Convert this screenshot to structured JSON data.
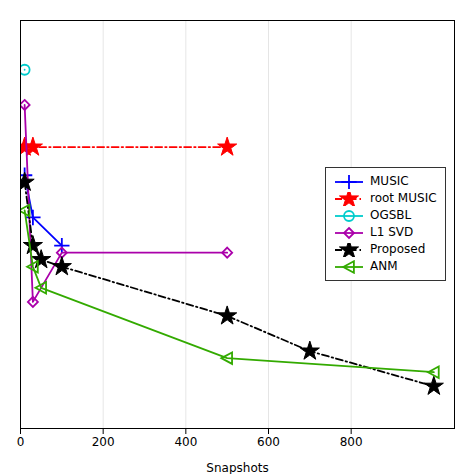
{
  "chart_data": {
    "type": "line",
    "xlabel": "Snapshots",
    "xlim": [
      0,
      1050
    ],
    "ylim": [
      0.42,
      1.0
    ],
    "xticks": [
      0,
      200,
      400,
      600,
      800
    ],
    "yticks": [],
    "grid": true,
    "legend": "center right",
    "tick_labels": "x",
    "series": [
      {
        "name": "MUSIC",
        "color": "#0000ff",
        "marker": "plus",
        "line_style": "solid",
        "x": [
          10,
          30,
          100
        ],
        "values": [
          0.78,
          0.72,
          0.68
        ]
      },
      {
        "name": "root MUSIC",
        "color": "#ff0000",
        "marker": "star",
        "line_style": "dashdot",
        "x": [
          10,
          30,
          500
        ],
        "values": [
          0.82,
          0.82,
          0.82
        ]
      },
      {
        "name": "OGSBL",
        "color": "#00cccc",
        "marker": "circle",
        "line_style": "solid",
        "x": [
          10
        ],
        "values": [
          0.93
        ]
      },
      {
        "name": "L1 SVD",
        "color": "#aa00aa",
        "marker": "diamond",
        "line_style": "solid",
        "x": [
          10,
          30,
          100,
          500
        ],
        "values": [
          0.88,
          0.6,
          0.67,
          0.67
        ]
      },
      {
        "name": "Proposed",
        "color": "#000000",
        "marker": "star",
        "line_style": "dashdot",
        "x": [
          10,
          30,
          50,
          100,
          500,
          700,
          1000
        ],
        "values": [
          0.77,
          0.68,
          0.66,
          0.65,
          0.58,
          0.53,
          0.48
        ]
      },
      {
        "name": "ANM",
        "color": "#33aa00",
        "marker": "triangle-left",
        "line_style": "solid",
        "x": [
          10,
          30,
          50,
          500,
          1000
        ],
        "values": [
          0.73,
          0.65,
          0.62,
          0.52,
          0.5
        ]
      }
    ]
  }
}
